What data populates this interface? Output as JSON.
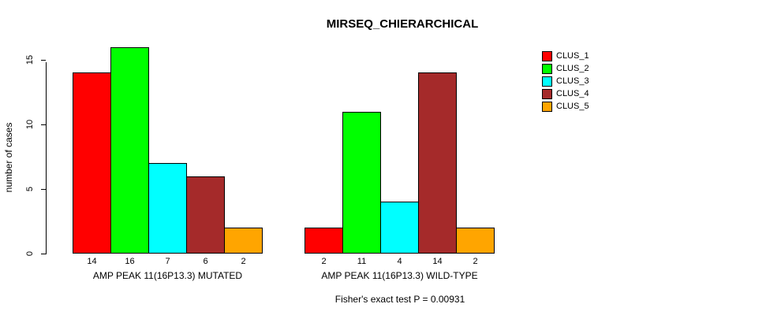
{
  "chart_data": {
    "type": "bar",
    "title": "MIRSEQ_CHIERARCHICAL",
    "ylabel": "number of cases",
    "xlabel": "",
    "yticks": [
      0,
      5,
      10,
      15
    ],
    "ylim": [
      0,
      15
    ],
    "grid": false,
    "legend_position": "top-right",
    "bar_value_labels_shown": true,
    "categories": [
      "AMP PEAK 11(16P13.3) MUTATED",
      "AMP PEAK 11(16P13.3) WILD-TYPE"
    ],
    "series": [
      {
        "name": "CLUS_1",
        "color": "#FF0000",
        "values": [
          14,
          2
        ]
      },
      {
        "name": "CLUS_2",
        "color": "#00FF00",
        "values": [
          16,
          11
        ]
      },
      {
        "name": "CLUS_3",
        "color": "#00FFFF",
        "values": [
          7,
          4
        ]
      },
      {
        "name": "CLUS_4",
        "color": "#A52A2A",
        "values": [
          6,
          14
        ]
      },
      {
        "name": "CLUS_5",
        "color": "#FFA500",
        "values": [
          2,
          2
        ]
      }
    ],
    "annotation": "Fisher's exact test P = 0.00931"
  }
}
